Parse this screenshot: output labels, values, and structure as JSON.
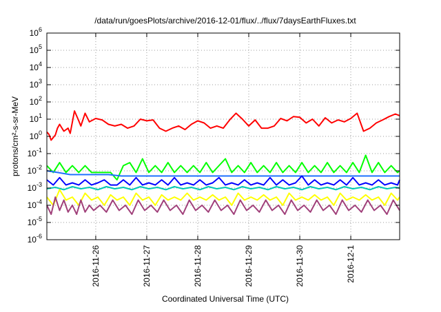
{
  "chart_data": {
    "type": "line",
    "title": "/data/run/goesPlots/archive/2016-12-01/flux/../flux/7daysEarthFluxes.txt",
    "xlabel": "Coordinated Universal Time (UTC)",
    "ylabel": "protons/cm²-s-sr-MeV",
    "y_scale": "log",
    "ylim": [
      1e-06,
      1000000.0
    ],
    "y_ticks": [
      {
        "base": "10",
        "exp": "-6"
      },
      {
        "base": "10",
        "exp": "-5"
      },
      {
        "base": "10",
        "exp": "-4"
      },
      {
        "base": "10",
        "exp": "-3"
      },
      {
        "base": "10",
        "exp": "-2"
      },
      {
        "base": "10",
        "exp": "-1"
      },
      {
        "base": "10",
        "exp": "0"
      },
      {
        "base": "10",
        "exp": "1"
      },
      {
        "base": "10",
        "exp": "2"
      },
      {
        "base": "10",
        "exp": "3"
      },
      {
        "base": "10",
        "exp": "4"
      },
      {
        "base": "10",
        "exp": "5"
      },
      {
        "base": "10",
        "exp": "6"
      }
    ],
    "xlim": [
      "2016-11-25 01:00",
      "2016-12-01 23:00"
    ],
    "x_ticks": [
      {
        "label": "2016-11-26",
        "time": "2016-11-26"
      },
      {
        "label": "2016-11-27",
        "time": "2016-11-27"
      },
      {
        "label": "2016-11-28",
        "time": "2016-11-28"
      },
      {
        "label": "2016-11-29",
        "time": "2016-11-29"
      },
      {
        "label": "2016-11-30",
        "time": "2016-11-30"
      },
      {
        "label": "2016-12-1",
        "time": "2016-12-01"
      }
    ],
    "grid": "dotted",
    "legend": "none",
    "series": [
      {
        "color": "#ff0000",
        "x": [
          "2016-11-25 01:00",
          "2016-11-25 02:00",
          "2016-11-25 03:00",
          "2016-11-25 05:00",
          "2016-11-25 06:00",
          "2016-11-25 07:00",
          "2016-11-25 09:00",
          "2016-11-25 11:00",
          "2016-11-25 12:00",
          "2016-11-25 14:00",
          "2016-11-25 16:00",
          "2016-11-25 17:00",
          "2016-11-25 19:00",
          "2016-11-25 21:00",
          "2016-11-26 00:00",
          "2016-11-26 03:00",
          "2016-11-26 06:00",
          "2016-11-26 09:00",
          "2016-11-26 12:00",
          "2016-11-26 15:00",
          "2016-11-26 18:00",
          "2016-11-26 21:00",
          "2016-11-27 00:00",
          "2016-11-27 03:00",
          "2016-11-27 06:00",
          "2016-11-27 09:00",
          "2016-11-27 12:00",
          "2016-11-27 15:00",
          "2016-11-27 18:00",
          "2016-11-27 21:00",
          "2016-11-28 00:00",
          "2016-11-28 03:00",
          "2016-11-28 06:00",
          "2016-11-28 09:00",
          "2016-11-28 12:00",
          "2016-11-28 15:00",
          "2016-11-28 18:00",
          "2016-11-28 21:00",
          "2016-11-29 00:00",
          "2016-11-29 03:00",
          "2016-11-29 06:00",
          "2016-11-29 09:00",
          "2016-11-29 12:00",
          "2016-11-29 15:00",
          "2016-11-29 18:00",
          "2016-11-29 21:00",
          "2016-11-30 00:00",
          "2016-11-30 03:00",
          "2016-11-30 06:00",
          "2016-11-30 09:00",
          "2016-11-30 12:00",
          "2016-11-30 15:00",
          "2016-11-30 18:00",
          "2016-11-30 21:00",
          "2016-12-01 00:00",
          "2016-12-01 03:00",
          "2016-12-01 06:00",
          "2016-12-01 09:00",
          "2016-12-01 12:00",
          "2016-12-01 15:00",
          "2016-12-01 18:00",
          "2016-12-01 21:00",
          "2016-12-01 23:00"
        ],
        "values": [
          1.8,
          1.3,
          0.6,
          1.2,
          3.0,
          5.0,
          2.0,
          3.0,
          1.5,
          30,
          8.0,
          4.0,
          22,
          7.0,
          11,
          9.0,
          5.0,
          4.0,
          5.0,
          3.0,
          4.0,
          10,
          8.0,
          9.0,
          3.0,
          2.0,
          3.0,
          4.0,
          2.5,
          5.0,
          8.0,
          6.0,
          3.0,
          4.0,
          3.0,
          9.0,
          22,
          10,
          4.0,
          9.0,
          3.0,
          3.0,
          4.0,
          11,
          8.0,
          14,
          13,
          6.0,
          10,
          4.0,
          12,
          6.0,
          9.0,
          7.0,
          11,
          22,
          2.0,
          3.0,
          6.0,
          9.0,
          14,
          20,
          16
        ]
      },
      {
        "color": "#00ff00",
        "x": [
          "2016-11-25 01:00",
          "2016-11-25 04:00",
          "2016-11-25 07:00",
          "2016-11-25 10:00",
          "2016-11-25 13:00",
          "2016-11-25 16:00",
          "2016-11-25 19:00",
          "2016-11-25 22:00",
          "2016-11-26 01:00",
          "2016-11-26 04:00",
          "2016-11-26 07:00",
          "2016-11-26 10:00",
          "2016-11-26 13:00",
          "2016-11-26 16:00",
          "2016-11-26 19:00",
          "2016-11-26 22:00",
          "2016-11-27 01:00",
          "2016-11-27 04:00",
          "2016-11-27 07:00",
          "2016-11-27 10:00",
          "2016-11-27 13:00",
          "2016-11-27 16:00",
          "2016-11-27 19:00",
          "2016-11-27 22:00",
          "2016-11-28 01:00",
          "2016-11-28 04:00",
          "2016-11-28 07:00",
          "2016-11-28 10:00",
          "2016-11-28 13:00",
          "2016-11-28 16:00",
          "2016-11-28 19:00",
          "2016-11-28 22:00",
          "2016-11-29 01:00",
          "2016-11-29 04:00",
          "2016-11-29 07:00",
          "2016-11-29 10:00",
          "2016-11-29 13:00",
          "2016-11-29 16:00",
          "2016-11-29 19:00",
          "2016-11-29 22:00",
          "2016-11-30 01:00",
          "2016-11-30 04:00",
          "2016-11-30 07:00",
          "2016-11-30 10:00",
          "2016-11-30 13:00",
          "2016-11-30 16:00",
          "2016-11-30 19:00",
          "2016-11-30 22:00",
          "2016-12-01 01:00",
          "2016-12-01 04:00",
          "2016-12-01 07:00",
          "2016-12-01 10:00",
          "2016-12-01 13:00",
          "2016-12-01 16:00",
          "2016-12-01 19:00",
          "2016-12-01 22:00",
          "2016-12-01 23:00"
        ],
        "values": [
          0.02,
          0.008,
          0.03,
          0.008,
          0.02,
          0.008,
          0.02,
          0.008,
          0.008,
          0.008,
          0.008,
          0.003,
          0.02,
          0.03,
          0.008,
          0.05,
          0.008,
          0.02,
          0.008,
          0.03,
          0.008,
          0.02,
          0.008,
          0.02,
          0.008,
          0.03,
          0.008,
          0.02,
          0.05,
          0.008,
          0.02,
          0.008,
          0.03,
          0.008,
          0.02,
          0.008,
          0.03,
          0.008,
          0.02,
          0.008,
          0.03,
          0.008,
          0.02,
          0.008,
          0.03,
          0.008,
          0.02,
          0.008,
          0.03,
          0.008,
          0.08,
          0.008,
          0.03,
          0.008,
          0.02,
          0.008,
          0.01
        ]
      },
      {
        "color": "#1e6fff",
        "x": [
          "2016-11-25 01:00",
          "2016-11-25 06:00",
          "2016-11-25 12:00",
          "2016-11-25 18:00",
          "2016-11-26 00:00",
          "2016-11-26 06:00",
          "2016-11-26 12:00",
          "2016-11-26 18:00",
          "2016-11-27 00:00",
          "2016-11-27 06:00",
          "2016-11-27 12:00",
          "2016-11-27 18:00",
          "2016-11-28 00:00",
          "2016-11-28 06:00",
          "2016-11-28 12:00",
          "2016-11-28 18:00",
          "2016-11-29 00:00",
          "2016-11-29 06:00",
          "2016-11-29 12:00",
          "2016-11-29 18:00",
          "2016-11-30 00:00",
          "2016-11-30 06:00",
          "2016-11-30 12:00",
          "2016-11-30 18:00",
          "2016-12-01 00:00",
          "2016-12-01 06:00",
          "2016-12-01 12:00",
          "2016-12-01 18:00",
          "2016-12-01 23:00"
        ],
        "values": [
          0.01,
          0.008,
          0.006,
          0.006,
          0.006,
          0.006,
          0.005,
          0.005,
          0.005,
          0.005,
          0.005,
          0.005,
          0.005,
          0.005,
          0.005,
          0.005,
          0.005,
          0.005,
          0.005,
          0.005,
          0.005,
          0.005,
          0.005,
          0.005,
          0.005,
          0.005,
          0.005,
          0.005,
          0.005
        ]
      },
      {
        "color": "#0000ff",
        "x": [
          "2016-11-25 01:00",
          "2016-11-25 04:00",
          "2016-11-25 07:00",
          "2016-11-25 10:00",
          "2016-11-25 13:00",
          "2016-11-25 16:00",
          "2016-11-25 19:00",
          "2016-11-25 22:00",
          "2016-11-26 01:00",
          "2016-11-26 04:00",
          "2016-11-26 07:00",
          "2016-11-26 10:00",
          "2016-11-26 13:00",
          "2016-11-26 16:00",
          "2016-11-26 19:00",
          "2016-11-26 22:00",
          "2016-11-27 01:00",
          "2016-11-27 04:00",
          "2016-11-27 07:00",
          "2016-11-27 10:00",
          "2016-11-27 13:00",
          "2016-11-27 16:00",
          "2016-11-27 19:00",
          "2016-11-27 22:00",
          "2016-11-28 01:00",
          "2016-11-28 04:00",
          "2016-11-28 07:00",
          "2016-11-28 10:00",
          "2016-11-28 13:00",
          "2016-11-28 16:00",
          "2016-11-28 19:00",
          "2016-11-28 22:00",
          "2016-11-29 01:00",
          "2016-11-29 04:00",
          "2016-11-29 07:00",
          "2016-11-29 10:00",
          "2016-11-29 13:00",
          "2016-11-29 16:00",
          "2016-11-29 19:00",
          "2016-11-29 22:00",
          "2016-11-30 01:00",
          "2016-11-30 04:00",
          "2016-11-30 07:00",
          "2016-11-30 10:00",
          "2016-11-30 13:00",
          "2016-11-30 16:00",
          "2016-11-30 19:00",
          "2016-11-30 22:00",
          "2016-12-01 01:00",
          "2016-12-01 04:00",
          "2016-12-01 07:00",
          "2016-12-01 10:00",
          "2016-12-01 13:00",
          "2016-12-01 16:00",
          "2016-12-01 19:00",
          "2016-12-01 22:00",
          "2016-12-01 23:00"
        ],
        "values": [
          0.003,
          0.0015,
          0.004,
          0.0015,
          0.002,
          0.0015,
          0.003,
          0.0015,
          0.002,
          0.003,
          0.0015,
          0.0015,
          0.003,
          0.0015,
          0.004,
          0.0015,
          0.002,
          0.0015,
          0.003,
          0.0015,
          0.004,
          0.0015,
          0.002,
          0.0015,
          0.003,
          0.0015,
          0.002,
          0.004,
          0.0015,
          0.002,
          0.0015,
          0.003,
          0.0015,
          0.002,
          0.0015,
          0.004,
          0.0015,
          0.003,
          0.0015,
          0.002,
          0.005,
          0.0015,
          0.003,
          0.0015,
          0.002,
          0.0015,
          0.003,
          0.0015,
          0.004,
          0.0015,
          0.002,
          0.0015,
          0.003,
          0.0015,
          0.002,
          0.0015,
          0.003
        ]
      },
      {
        "color": "#00c8b4",
        "x": [
          "2016-11-25 01:00",
          "2016-11-25 05:00",
          "2016-11-25 09:00",
          "2016-11-25 13:00",
          "2016-11-25 17:00",
          "2016-11-25 21:00",
          "2016-11-26 01:00",
          "2016-11-26 05:00",
          "2016-11-26 09:00",
          "2016-11-26 13:00",
          "2016-11-26 17:00",
          "2016-11-26 21:00",
          "2016-11-27 01:00",
          "2016-11-27 05:00",
          "2016-11-27 09:00",
          "2016-11-27 13:00",
          "2016-11-27 17:00",
          "2016-11-27 21:00",
          "2016-11-28 01:00",
          "2016-11-28 05:00",
          "2016-11-28 09:00",
          "2016-11-28 13:00",
          "2016-11-28 17:00",
          "2016-11-28 21:00",
          "2016-11-29 01:00",
          "2016-11-29 05:00",
          "2016-11-29 09:00",
          "2016-11-29 13:00",
          "2016-11-29 17:00",
          "2016-11-29 21:00",
          "2016-11-30 01:00",
          "2016-11-30 05:00",
          "2016-11-30 09:00",
          "2016-11-30 13:00",
          "2016-11-30 17:00",
          "2016-11-30 21:00",
          "2016-12-01 01:00",
          "2016-12-01 05:00",
          "2016-12-01 09:00",
          "2016-12-01 13:00",
          "2016-12-01 17:00",
          "2016-12-01 21:00",
          "2016-12-01 23:00"
        ],
        "values": [
          0.0009,
          0.0011,
          0.0008,
          0.0012,
          0.0009,
          0.0011,
          0.0008,
          0.0012,
          0.0009,
          0.0011,
          0.0008,
          0.0012,
          0.0009,
          0.0011,
          0.0008,
          0.0012,
          0.0009,
          0.0011,
          0.0008,
          0.0012,
          0.0009,
          0.0011,
          0.0008,
          0.0012,
          0.0009,
          0.0011,
          0.0008,
          0.0012,
          0.0009,
          0.0011,
          0.0008,
          0.0012,
          0.0009,
          0.0011,
          0.0008,
          0.0012,
          0.0009,
          0.0011,
          0.0008,
          0.0012,
          0.0009,
          0.0011,
          0.001
        ]
      },
      {
        "color": "#ffff00",
        "x": [
          "2016-11-25 01:00",
          "2016-11-25 04:00",
          "2016-11-25 07:00",
          "2016-11-25 10:00",
          "2016-11-25 13:00",
          "2016-11-25 16:00",
          "2016-11-25 19:00",
          "2016-11-25 22:00",
          "2016-11-26 01:00",
          "2016-11-26 04:00",
          "2016-11-26 07:00",
          "2016-11-26 10:00",
          "2016-11-26 13:00",
          "2016-11-26 16:00",
          "2016-11-26 19:00",
          "2016-11-26 22:00",
          "2016-11-27 01:00",
          "2016-11-27 04:00",
          "2016-11-27 07:00",
          "2016-11-27 10:00",
          "2016-11-27 13:00",
          "2016-11-27 16:00",
          "2016-11-27 19:00",
          "2016-11-27 22:00",
          "2016-11-28 01:00",
          "2016-11-28 04:00",
          "2016-11-28 07:00",
          "2016-11-28 10:00",
          "2016-11-28 13:00",
          "2016-11-28 16:00",
          "2016-11-28 19:00",
          "2016-11-28 22:00",
          "2016-11-29 01:00",
          "2016-11-29 04:00",
          "2016-11-29 07:00",
          "2016-11-29 10:00",
          "2016-11-29 13:00",
          "2016-11-29 16:00",
          "2016-11-29 19:00",
          "2016-11-29 22:00",
          "2016-11-30 01:00",
          "2016-11-30 04:00",
          "2016-11-30 07:00",
          "2016-11-30 10:00",
          "2016-11-30 13:00",
          "2016-11-30 16:00",
          "2016-11-30 19:00",
          "2016-11-30 22:00",
          "2016-12-01 01:00",
          "2016-12-01 04:00",
          "2016-12-01 07:00",
          "2016-12-01 10:00",
          "2016-12-01 13:00",
          "2016-12-01 16:00",
          "2016-12-01 19:00",
          "2016-12-01 22:00",
          "2016-12-01 23:00"
        ],
        "values": [
          0.0003,
          0.0001,
          0.0008,
          0.0002,
          0.0003,
          0.0001,
          0.0005,
          0.0002,
          0.0003,
          0.0001,
          0.0004,
          0.0002,
          0.0003,
          0.0001,
          0.0005,
          0.0002,
          0.0003,
          0.0001,
          0.0004,
          0.0002,
          0.0003,
          0.0002,
          0.0005,
          0.0002,
          0.0003,
          0.0002,
          0.0004,
          0.0002,
          0.0003,
          0.0001,
          0.0005,
          0.0002,
          0.0003,
          0.0002,
          0.0004,
          0.0002,
          0.0003,
          0.0001,
          0.0005,
          0.0002,
          0.0003,
          0.0002,
          0.0004,
          0.0002,
          0.0003,
          0.0001,
          0.0005,
          0.0002,
          0.0003,
          0.0002,
          0.0004,
          0.0002,
          0.0003,
          0.0001,
          0.0005,
          0.0002,
          0.0003
        ]
      },
      {
        "color": "#a0407a",
        "x": [
          "2016-11-25 01:00",
          "2016-11-25 03:00",
          "2016-11-25 05:00",
          "2016-11-25 07:00",
          "2016-11-25 09:00",
          "2016-11-25 11:00",
          "2016-11-25 13:00",
          "2016-11-25 15:00",
          "2016-11-25 17:00",
          "2016-11-25 19:00",
          "2016-11-25 21:00",
          "2016-11-25 23:00",
          "2016-11-26 02:00",
          "2016-11-26 05:00",
          "2016-11-26 08:00",
          "2016-11-26 11:00",
          "2016-11-26 14:00",
          "2016-11-26 17:00",
          "2016-11-26 20:00",
          "2016-11-26 23:00",
          "2016-11-27 02:00",
          "2016-11-27 05:00",
          "2016-11-27 08:00",
          "2016-11-27 11:00",
          "2016-11-27 14:00",
          "2016-11-27 17:00",
          "2016-11-27 20:00",
          "2016-11-27 23:00",
          "2016-11-28 02:00",
          "2016-11-28 05:00",
          "2016-11-28 08:00",
          "2016-11-28 11:00",
          "2016-11-28 14:00",
          "2016-11-28 17:00",
          "2016-11-28 20:00",
          "2016-11-28 23:00",
          "2016-11-29 02:00",
          "2016-11-29 05:00",
          "2016-11-29 08:00",
          "2016-11-29 11:00",
          "2016-11-29 14:00",
          "2016-11-29 17:00",
          "2016-11-29 20:00",
          "2016-11-29 23:00",
          "2016-11-30 02:00",
          "2016-11-30 05:00",
          "2016-11-30 08:00",
          "2016-11-30 11:00",
          "2016-11-30 14:00",
          "2016-11-30 17:00",
          "2016-11-30 20:00",
          "2016-11-30 23:00",
          "2016-12-01 02:00",
          "2016-12-01 05:00",
          "2016-12-01 08:00",
          "2016-12-01 11:00",
          "2016-12-01 14:00",
          "2016-12-01 17:00",
          "2016-12-01 20:00",
          "2016-12-01 23:00"
        ],
        "values": [
          0.0001,
          3e-05,
          0.0003,
          5e-05,
          0.0002,
          4e-05,
          0.0001,
          3e-05,
          0.0002,
          4e-05,
          0.0001,
          5e-05,
          0.0001,
          4e-05,
          0.0002,
          5e-05,
          0.0001,
          3e-05,
          0.0002,
          5e-05,
          0.0001,
          4e-05,
          0.0002,
          5e-05,
          0.0001,
          3e-05,
          0.0002,
          5e-05,
          0.0001,
          4e-05,
          0.0002,
          5e-05,
          0.0001,
          3e-05,
          0.0002,
          5e-05,
          0.0001,
          4e-05,
          0.0002,
          5e-05,
          0.0001,
          3e-05,
          0.0002,
          5e-05,
          0.0001,
          4e-05,
          0.0002,
          5e-05,
          0.0001,
          3e-05,
          0.0002,
          5e-05,
          0.0001,
          4e-05,
          0.0002,
          5e-05,
          0.0001,
          3e-05,
          0.0002,
          5e-05
        ]
      }
    ]
  }
}
